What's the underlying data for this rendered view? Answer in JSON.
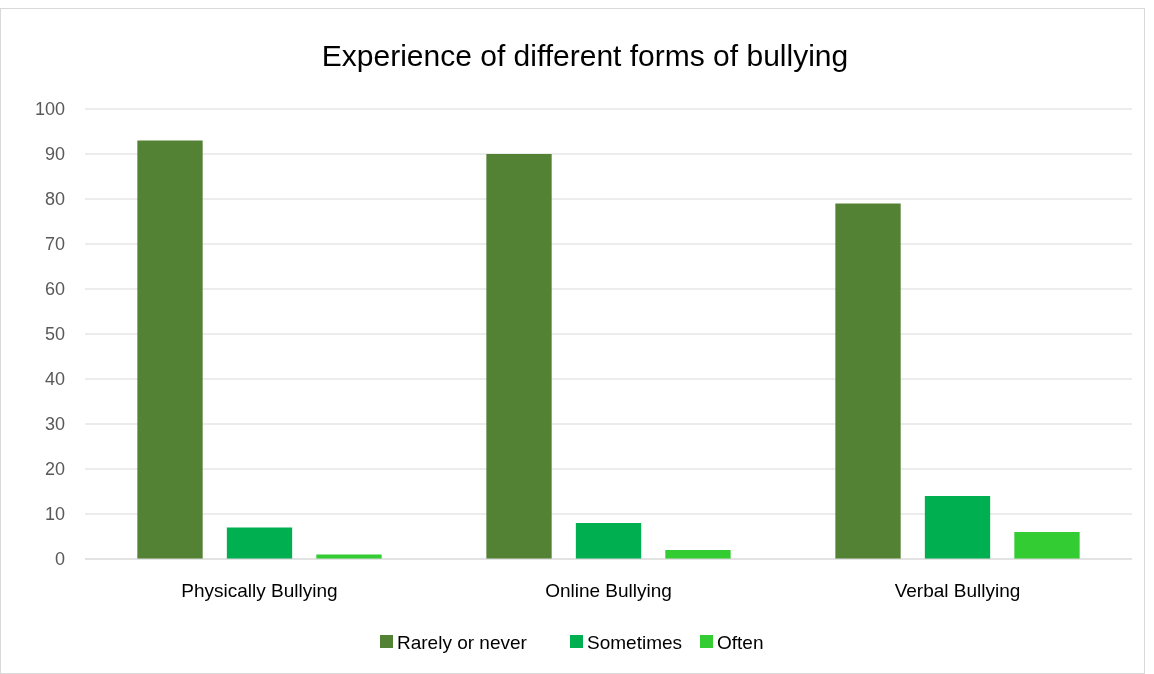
{
  "chart_data": {
    "type": "bar",
    "title": "Experience of different forms of bullying",
    "categories": [
      "Physically Bullying",
      "Online Bullying",
      "Verbal Bullying"
    ],
    "series": [
      {
        "name": "Rarely or never",
        "color": "#548235",
        "values": [
          93,
          90,
          79
        ]
      },
      {
        "name": "Sometimes",
        "color": "#00b050",
        "values": [
          7,
          8,
          14
        ]
      },
      {
        "name": "Often",
        "color": "#33cc33",
        "values": [
          1,
          2,
          6
        ]
      }
    ],
    "ylim": [
      0,
      100
    ],
    "yticks": [
      0,
      10,
      20,
      30,
      40,
      50,
      60,
      70,
      80,
      90,
      100
    ],
    "grid": "y",
    "legend": "bottom"
  }
}
